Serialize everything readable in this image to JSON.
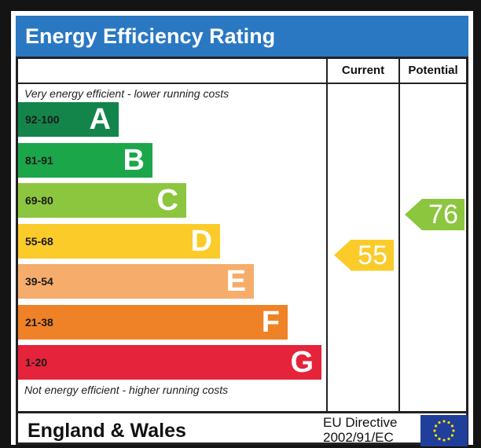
{
  "title": "Energy Efficiency Rating",
  "columns": {
    "current": "Current",
    "potential": "Potential"
  },
  "top_note": "Very energy efficient - lower running costs",
  "bottom_note": "Not energy efficient - higher running costs",
  "bands": [
    {
      "range": "92-100",
      "letter": "A",
      "color": "#13854a"
    },
    {
      "range": "81-91",
      "letter": "B",
      "color": "#1ba64a"
    },
    {
      "range": "69-80",
      "letter": "C",
      "color": "#8cc63f"
    },
    {
      "range": "55-68",
      "letter": "D",
      "color": "#fbcb2a"
    },
    {
      "range": "39-54",
      "letter": "E",
      "color": "#f6ad6b"
    },
    {
      "range": "21-38",
      "letter": "F",
      "color": "#ef8226"
    },
    {
      "range": "1-20",
      "letter": "G",
      "color": "#e5233b"
    }
  ],
  "current": {
    "value": "55",
    "band": "D",
    "color": "#fbcb2a"
  },
  "potential": {
    "value": "76",
    "band": "C",
    "color": "#8cc63f"
  },
  "footer": {
    "region": "England & Wales",
    "directive_line1": "EU Directive",
    "directive_line2": "2002/91/EC",
    "flag_icon": "eu-flag-icon"
  }
}
